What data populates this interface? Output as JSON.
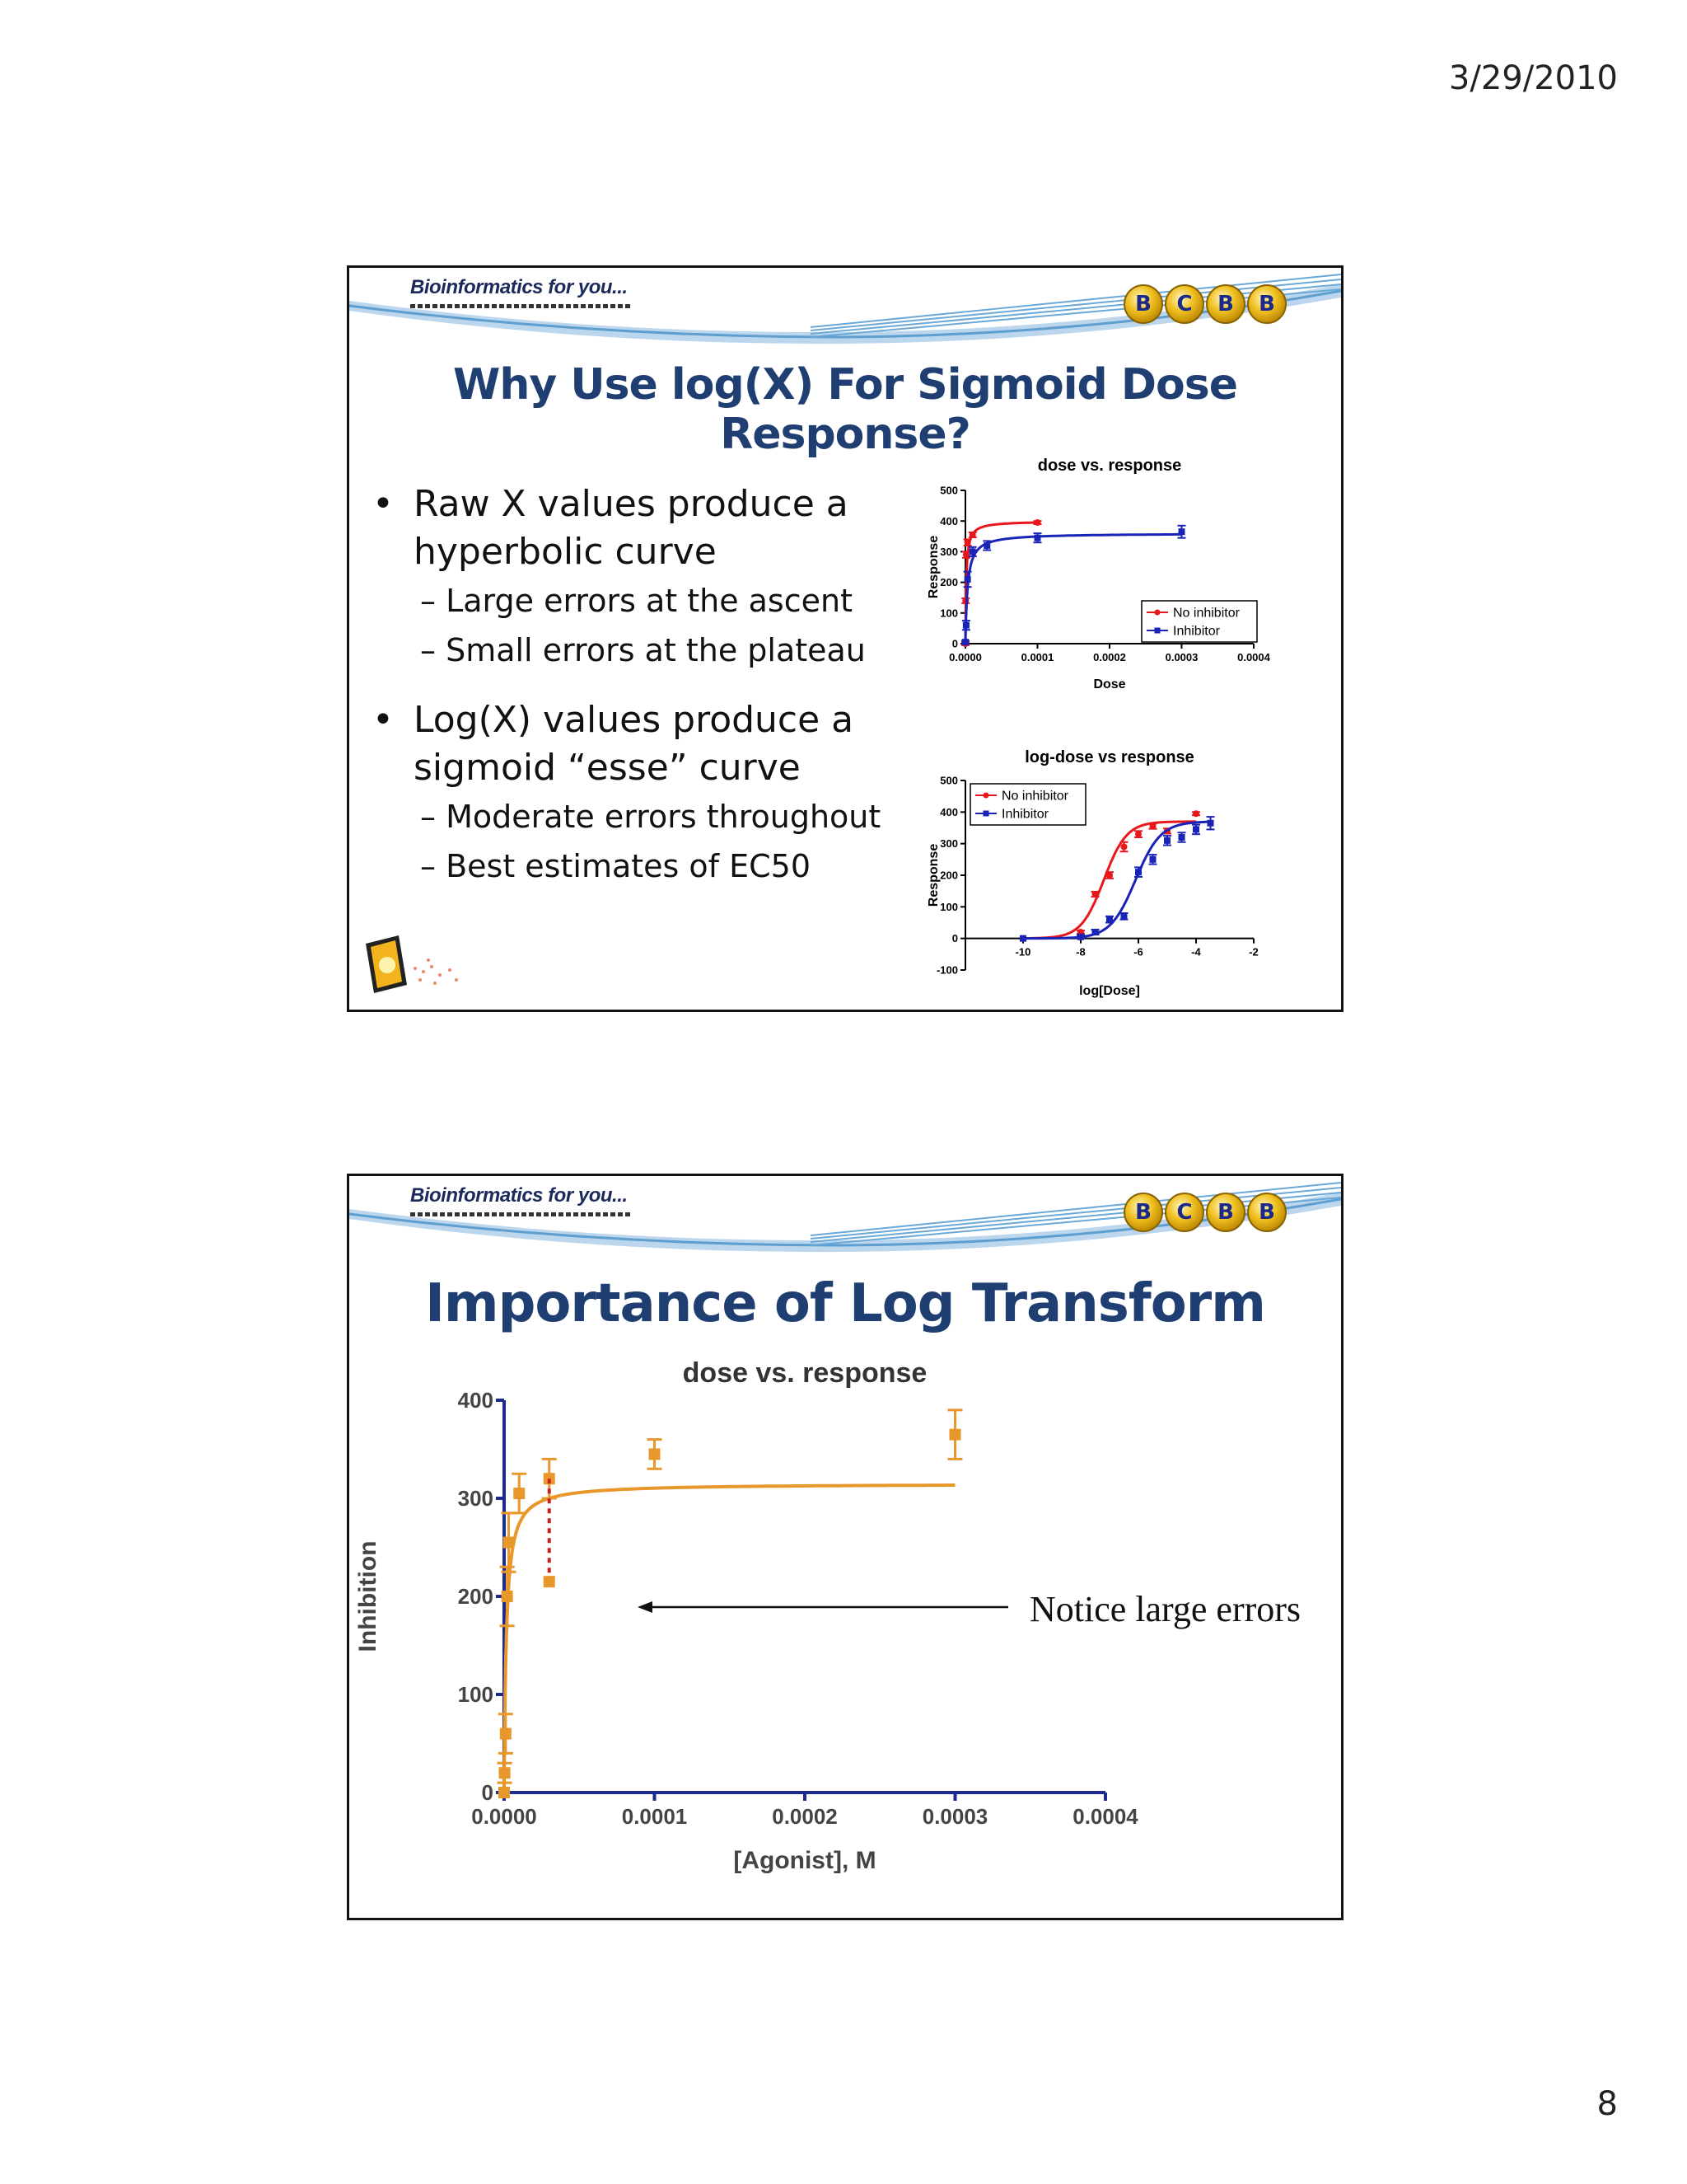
{
  "page": {
    "date": "3/29/2010",
    "number": "8"
  },
  "header": {
    "brand": "Bioinformatics for you...",
    "logo_letters": [
      "B",
      "C",
      "B",
      "B"
    ]
  },
  "slide1": {
    "title": "Why Use log(X) For Sigmoid Dose Response?",
    "bullets": [
      {
        "text": "Raw X values produce a hyperbolic curve",
        "line1": "Raw X values produce a",
        "line2": "hyperbolic curve",
        "subs": [
          "– Large errors at the ascent",
          "– Small errors at the plateau"
        ]
      },
      {
        "text": "Log(X) values produce a sigmoid “esse” curve",
        "line1": "Log(X) values produce a",
        "line2": "sigmoid “esse” curve",
        "subs": [
          "– Moderate errors throughout",
          "– Best estimates of EC50"
        ]
      }
    ]
  },
  "slide2": {
    "title": "Importance of Log Transform",
    "annotation": "Notice large errors"
  },
  "colors": {
    "title": "#1f3f73",
    "no_inhibitor": "#e8171b",
    "inhibitor": "#1a23b8",
    "orange": "#e8972a",
    "axis": "#1d2a8e"
  },
  "chart_data": [
    {
      "type": "line",
      "title": "dose vs. response",
      "xlabel": "Dose",
      "ylabel": "Response",
      "xlim": [
        0,
        0.0004
      ],
      "ylim": [
        0,
        500
      ],
      "xticks": [
        "0.0000",
        "0.0001",
        "0.0002",
        "0.0003",
        "0.0004"
      ],
      "yticks": [
        "0",
        "100",
        "200",
        "300",
        "400",
        "500"
      ],
      "legend": "bottom-right",
      "series": [
        {
          "name": "No inhibitor",
          "color": "#e8171b",
          "marker": "circle",
          "x": [
            0,
            3e-07,
            1e-06,
            3e-06,
            1e-05,
            0.0001
          ],
          "y": [
            0,
            140,
            290,
            330,
            355,
            395
          ],
          "err": [
            5,
            8,
            10,
            10,
            8,
            5
          ]
        },
        {
          "name": "Inhibitor",
          "color": "#1a23b8",
          "marker": "square",
          "x": [
            0,
            1e-06,
            3e-06,
            1e-05,
            3e-05,
            0.0001,
            0.0003
          ],
          "y": [
            5,
            60,
            210,
            300,
            320,
            345,
            365
          ],
          "err": [
            5,
            15,
            25,
            15,
            15,
            15,
            20
          ]
        }
      ]
    },
    {
      "type": "line",
      "title": "log-dose vs response",
      "xlabel": "log[Dose]",
      "ylabel": "Response",
      "xlim": [
        -12,
        -2
      ],
      "ylim": [
        -100,
        500
      ],
      "xticks": [
        "-10",
        "-8",
        "-6",
        "-4",
        "-2"
      ],
      "yticks": [
        "-100",
        "0",
        "100",
        "200",
        "300",
        "400",
        "500"
      ],
      "legend": "top-left",
      "series": [
        {
          "name": "No inhibitor",
          "color": "#e8171b",
          "marker": "circle",
          "x": [
            -10,
            -8,
            -7.5,
            -7,
            -6.5,
            -6,
            -5.5,
            -5,
            -4
          ],
          "y": [
            0,
            20,
            140,
            200,
            290,
            330,
            355,
            340,
            395
          ],
          "err": [
            0,
            5,
            8,
            10,
            15,
            10,
            8,
            8,
            5
          ]
        },
        {
          "name": "Inhibitor",
          "color": "#1a23b8",
          "marker": "square",
          "x": [
            -10,
            -8,
            -7.5,
            -7,
            -6.5,
            -6,
            -5.5,
            -5,
            -4.5,
            -4,
            -3.5
          ],
          "y": [
            0,
            5,
            20,
            60,
            70,
            210,
            250,
            310,
            320,
            345,
            365
          ],
          "err": [
            0,
            5,
            8,
            10,
            10,
            15,
            15,
            15,
            15,
            15,
            20
          ]
        }
      ]
    },
    {
      "type": "scatter",
      "title": "dose vs. response",
      "xlabel": "[Agonist], M",
      "ylabel": "Inhibition",
      "xlim": [
        0,
        0.0004
      ],
      "ylim": [
        0,
        400
      ],
      "xticks": [
        "0.0000",
        "0.0001",
        "0.0002",
        "0.0003",
        "0.0004"
      ],
      "yticks": [
        "0",
        "100",
        "200",
        "300",
        "400"
      ],
      "series": [
        {
          "name": "",
          "color": "#e8972a",
          "marker": "square",
          "x": [
            0,
            3e-07,
            1e-06,
            2e-06,
            3e-06,
            1e-05,
            3e-05,
            0.0001,
            0.0003
          ],
          "y": [
            0,
            20,
            60,
            200,
            255,
            305,
            320,
            345,
            365
          ],
          "err": [
            0,
            10,
            20,
            30,
            30,
            20,
            20,
            15,
            25
          ]
        }
      ],
      "annotation_point": {
        "x": 3e-05,
        "y": 215
      }
    }
  ]
}
